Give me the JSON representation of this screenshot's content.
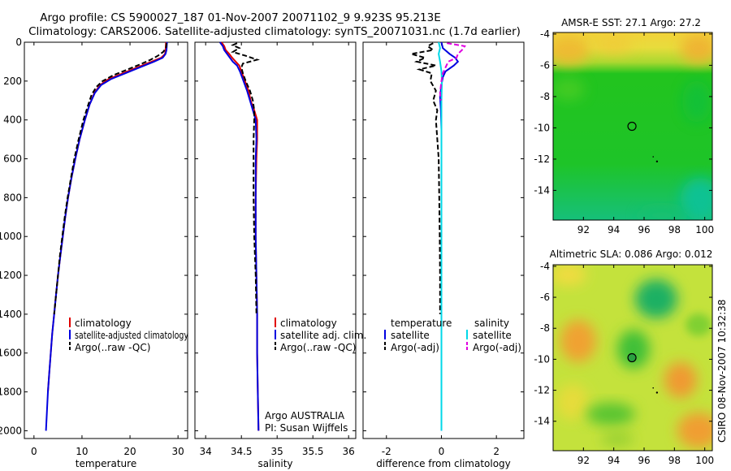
{
  "figure": {
    "title_line1": "Argo profile: CS 5900027_187 01-Nov-2007 20071102_9 9.923S 95.213E",
    "title_line2": "Climatology: CARS2006. Satellite-adjusted climatology: synTS_20071031.nc (1.7d earlier)",
    "side_stamp": "CSIRO 08-Nov-2007 10:32:38"
  },
  "colors": {
    "climatology": "#e00000",
    "satellite": "#0000e0",
    "argo": "#000000",
    "sat_salinity": "#00d8e8",
    "argo_salinity_adj": "#e000e0"
  },
  "chart_data": [
    {
      "id": "temperature",
      "type": "line",
      "xlabel": "temperature",
      "ylabel": "",
      "xlim": [
        -2,
        32
      ],
      "ylim": [
        2040,
        0
      ],
      "xticks": [
        0,
        10,
        20,
        30
      ],
      "xtick_labels": [
        "0",
        "10",
        "20",
        "30"
      ],
      "yticks": [
        0,
        200,
        400,
        600,
        800,
        1000,
        1200,
        1400,
        1600,
        1800,
        2000
      ],
      "ytick_labels": [
        "0",
        "200",
        "400",
        "600",
        "800",
        "1000",
        "1200",
        "1400",
        "1600",
        "1800",
        "2000"
      ],
      "legend": {
        "position": "lower-right",
        "labels": [
          "climatology",
          "satellite-adjusted climatology",
          "Argo(..raw -QC)"
        ]
      },
      "series": [
        {
          "name": "climatology",
          "color": "climatology",
          "dash": false,
          "depth": [
            0,
            40,
            60,
            80,
            100,
            130,
            160,
            190,
            220,
            260,
            320,
            400,
            500,
            600,
            700,
            800,
            900,
            1000,
            1100,
            1200,
            1300,
            1400,
            1500,
            1600,
            1700,
            1800
          ],
          "values": [
            27.5,
            27.4,
            27.3,
            26.5,
            24.5,
            21.5,
            18.5,
            15.5,
            13.8,
            12.6,
            11.6,
            10.6,
            9.5,
            8.6,
            7.8,
            7.1,
            6.5,
            6.0,
            5.5,
            5.0,
            4.6,
            4.2,
            3.8,
            3.5,
            3.2,
            2.9
          ]
        },
        {
          "name": "satellite",
          "color": "satellite",
          "dash": false,
          "depth": [
            0,
            40,
            60,
            80,
            100,
            130,
            160,
            190,
            220,
            260,
            320,
            400,
            500,
            600,
            700,
            800,
            900,
            1000,
            1100,
            1200,
            1300,
            1400,
            1500,
            1600,
            1700,
            1800,
            1900,
            2000
          ],
          "values": [
            27.7,
            27.6,
            27.4,
            26.8,
            25.0,
            22.0,
            19.0,
            16.0,
            14.0,
            12.7,
            11.6,
            10.6,
            9.5,
            8.6,
            7.8,
            7.1,
            6.5,
            6.0,
            5.5,
            5.0,
            4.6,
            4.2,
            3.8,
            3.5,
            3.2,
            2.9,
            2.7,
            2.5
          ]
        },
        {
          "name": "argo",
          "color": "argo",
          "dash": true,
          "depth": [
            5,
            30,
            50,
            70,
            90,
            110,
            140,
            170,
            200,
            230,
            270,
            330,
            400,
            500,
            600,
            700,
            800,
            900,
            1000,
            1100,
            1200,
            1300,
            1400
          ],
          "values": [
            27.6,
            27.5,
            26.9,
            25.8,
            24.3,
            22.5,
            19.5,
            16.5,
            14.3,
            13.0,
            12.0,
            11.2,
            10.3,
            9.3,
            8.4,
            7.7,
            7.0,
            6.4,
            5.9,
            5.4,
            5.0,
            4.6,
            4.2
          ]
        }
      ]
    },
    {
      "id": "salinity",
      "type": "line",
      "xlabel": "salinity",
      "ylabel": "",
      "xlim": [
        33.85,
        36.1
      ],
      "ylim": [
        2040,
        0
      ],
      "xticks": [
        34,
        34.5,
        35,
        35.5,
        36
      ],
      "xtick_labels": [
        "34",
        "34.5",
        "35",
        "35.5",
        "36"
      ],
      "legend": {
        "position": "lower-right",
        "labels": [
          "climatology",
          "satellite adj. clim.",
          "Argo(..raw -QC)"
        ]
      },
      "annotations": [
        "Argo AUSTRALIA",
        "PI: Susan Wijffels"
      ],
      "series": [
        {
          "name": "climatology",
          "color": "climatology",
          "dash": false,
          "depth": [
            0,
            20,
            40,
            60,
            80,
            100,
            120,
            150,
            200,
            250,
            300,
            350,
            400,
            500,
            600,
            800,
            1000,
            1200,
            1400,
            1600,
            1800,
            2000
          ],
          "values": [
            34.22,
            34.26,
            34.28,
            34.33,
            34.37,
            34.42,
            34.47,
            34.5,
            34.55,
            34.6,
            34.63,
            34.68,
            34.72,
            34.72,
            34.71,
            34.7,
            34.7,
            34.71,
            34.72,
            34.72,
            34.73,
            34.74
          ]
        },
        {
          "name": "satellite",
          "color": "satellite",
          "dash": false,
          "depth": [
            0,
            20,
            40,
            60,
            80,
            100,
            120,
            150,
            200,
            250,
            300,
            350,
            400,
            500,
            600,
            800,
            1000,
            1200,
            1400,
            1600,
            1800,
            2000
          ],
          "values": [
            34.2,
            34.24,
            34.26,
            34.3,
            34.34,
            34.38,
            34.44,
            34.48,
            34.53,
            34.58,
            34.62,
            34.66,
            34.7,
            34.71,
            34.7,
            34.7,
            34.7,
            34.71,
            34.72,
            34.72,
            34.73,
            34.74
          ]
        },
        {
          "name": "argo",
          "color": "argo",
          "dash": true,
          "depth": [
            5,
            15,
            30,
            50,
            70,
            90,
            110,
            130,
            160,
            200,
            250,
            300,
            350,
            400,
            500,
            600,
            800,
            1000,
            1200,
            1400
          ],
          "values": [
            34.44,
            34.38,
            34.47,
            34.38,
            34.56,
            34.72,
            34.52,
            34.5,
            34.52,
            34.56,
            34.62,
            34.66,
            34.68,
            34.68,
            34.67,
            34.67,
            34.67,
            34.68,
            34.7,
            34.71
          ]
        }
      ]
    },
    {
      "id": "difference",
      "type": "line",
      "xlabel": "difference from climatology",
      "ylabel": "",
      "xlim": [
        -2.85,
        3.0
      ],
      "ylim": [
        2040,
        0
      ],
      "xticks": [
        -2,
        0,
        2
      ],
      "xtick_labels": [
        "-2",
        "0",
        "2"
      ],
      "legend": {
        "position": "lower-center",
        "group_titles": [
          "temperature",
          "salinity"
        ],
        "labels": [
          "satellite",
          "Argo(-adj)",
          "satellite",
          "Argo(-adj)"
        ]
      },
      "series": [
        {
          "name": "temperature satellite",
          "color": "satellite",
          "dash": false,
          "depth": [
            0,
            30,
            60,
            80,
            100,
            120,
            150,
            180,
            220,
            280,
            350,
            450,
            600,
            800,
            1000,
            1400,
            2000
          ],
          "values": [
            0.0,
            0.05,
            0.3,
            0.5,
            0.6,
            0.45,
            0.15,
            0.05,
            0.0,
            -0.05,
            -0.02,
            0.0,
            0.0,
            0.0,
            0.0,
            0.0,
            0.0
          ]
        },
        {
          "name": "temperature argo",
          "color": "argo",
          "dash": true,
          "depth": [
            5,
            20,
            40,
            60,
            80,
            100,
            120,
            140,
            160,
            200,
            250,
            300,
            350,
            400,
            500,
            600,
            800,
            1000,
            1200,
            1400
          ],
          "values": [
            -0.3,
            -0.5,
            -0.3,
            -1.1,
            -0.6,
            -0.9,
            -0.2,
            -0.8,
            -0.35,
            -0.4,
            -0.2,
            -0.3,
            -0.15,
            -0.2,
            -0.15,
            -0.1,
            -0.08,
            -0.06,
            -0.05,
            -0.05
          ]
        },
        {
          "name": "salinity satellite",
          "color": "sat_salinity",
          "dash": false,
          "depth": [
            0,
            30,
            60,
            100,
            150,
            200,
            300,
            400,
            600,
            1000,
            1400,
            2000
          ],
          "values": [
            -0.1,
            -0.05,
            -0.1,
            -0.05,
            0.0,
            0.02,
            0.0,
            0.0,
            0.0,
            0.0,
            0.0,
            0.0
          ]
        },
        {
          "name": "salinity argo",
          "color": "argo_salinity_adj",
          "dash": true,
          "depth": [
            5,
            20,
            40,
            60,
            80,
            100,
            130,
            160,
            200,
            260,
            300
          ],
          "values": [
            0.2,
            0.85,
            0.75,
            0.6,
            0.55,
            0.25,
            0.15,
            0.05,
            0.0,
            -0.05,
            -0.02
          ]
        }
      ]
    }
  ],
  "maps": [
    {
      "id": "sst_map",
      "title": "AMSR-E SST: 27.1 Argo: 27.2",
      "xlim": [
        90,
        100.5
      ],
      "ylim": [
        -15.9,
        -3.9
      ],
      "xticks": [
        92,
        94,
        96,
        98,
        100
      ],
      "yticks": [
        -4,
        -6,
        -8,
        -10,
        -12,
        -14
      ],
      "marker": {
        "lon": 95.2,
        "lat": -9.9,
        "filled": false
      }
    },
    {
      "id": "sla_map",
      "title": "Altimetric SLA: 0.086 Argo: 0.012",
      "xlim": [
        90,
        100.5
      ],
      "ylim": [
        -15.9,
        -3.9
      ],
      "xticks": [
        92,
        94,
        96,
        98,
        100
      ],
      "yticks": [
        -4,
        -6,
        -8,
        -10,
        -12,
        -14
      ],
      "marker": {
        "lon": 95.2,
        "lat": -9.9,
        "filled": true
      }
    }
  ]
}
